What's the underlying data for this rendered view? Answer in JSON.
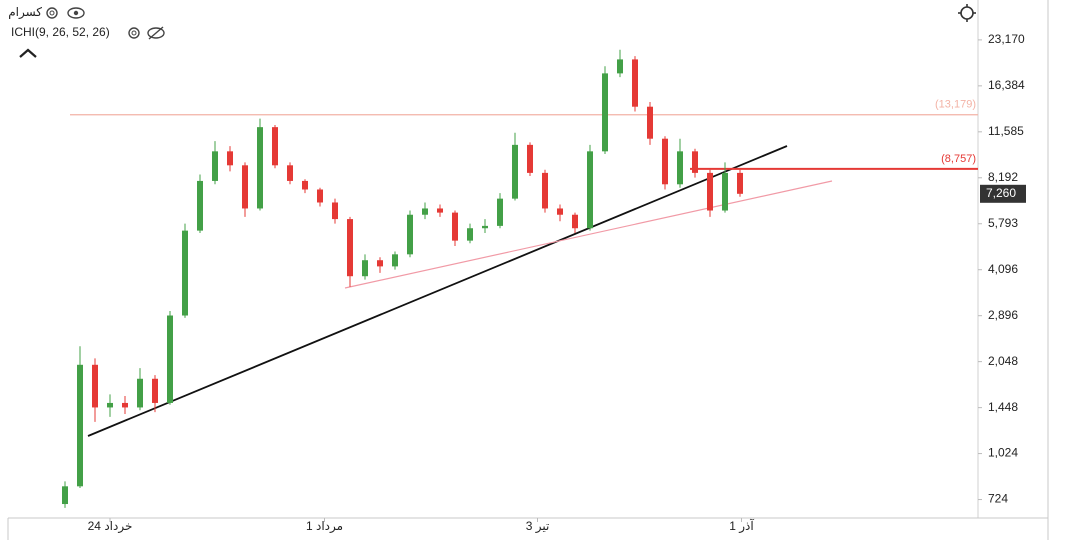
{
  "chart_data": {
    "type": "candlestick",
    "symbol": "کسرام",
    "indicator": "ICHI(9, 26, 52, 26)",
    "log_scale": true,
    "ylim": [
      630,
      31300
    ],
    "yticks": [
      {
        "value": 724,
        "label": "724"
      },
      {
        "value": 1024,
        "label": "1,024"
      },
      {
        "value": 1448,
        "label": "1,448"
      },
      {
        "value": 2048,
        "label": "2,048"
      },
      {
        "value": 2896,
        "label": "2,896"
      },
      {
        "value": 4096,
        "label": "4,096"
      },
      {
        "value": 5793,
        "label": "5,793"
      },
      {
        "value": 8192,
        "label": "8,192"
      },
      {
        "value": 11585,
        "label": "11,585"
      },
      {
        "value": 16384,
        "label": "16,384"
      },
      {
        "value": 23170,
        "label": "23,170"
      }
    ],
    "xticks": [
      {
        "value": 3,
        "label": "24 خرداد"
      },
      {
        "value": 17.3,
        "label": "1 مرداد"
      },
      {
        "value": 31.5,
        "label": "3 تیر"
      },
      {
        "value": 45.1,
        "label": "1 آذر"
      }
    ],
    "up_color": "#43a047",
    "down_color": "#e53935",
    "open": [
      700,
      800,
      2000,
      1450,
      1500,
      1450,
      1800,
      1500,
      2900,
      5500,
      8000,
      10000,
      9000,
      6500,
      12000,
      9000,
      8000,
      7500,
      6800,
      6000,
      3900,
      4400,
      4200,
      4600,
      6200,
      6500,
      6300,
      5100,
      5600,
      5700,
      7000,
      10500,
      8500,
      6500,
      6200,
      5600,
      10000,
      18000,
      20000,
      14000,
      11000,
      7800,
      10000,
      8500,
      6400,
      8500
    ],
    "high": [
      830,
      2300,
      2100,
      1600,
      1580,
      1950,
      1850,
      3000,
      5800,
      8400,
      10800,
      10400,
      9200,
      12800,
      12200,
      9200,
      8100,
      7600,
      7000,
      6100,
      4600,
      4500,
      4700,
      6400,
      6800,
      6700,
      6400,
      5800,
      6000,
      7300,
      11500,
      10700,
      8700,
      6700,
      6300,
      10500,
      19000,
      21500,
      20500,
      14500,
      11200,
      11000,
      10200,
      8700,
      9200,
      8700
    ],
    "low": [
      680,
      790,
      1300,
      1350,
      1380,
      1420,
      1400,
      1480,
      2850,
      5400,
      7800,
      8600,
      6100,
      6400,
      8800,
      7800,
      7300,
      6600,
      5800,
      3600,
      3800,
      4000,
      4100,
      4500,
      6000,
      6100,
      4900,
      5000,
      5400,
      5600,
      6900,
      8300,
      6300,
      5900,
      5400,
      5500,
      9800,
      17500,
      13500,
      10500,
      7500,
      7600,
      8200,
      6100,
      6300,
      7100
    ],
    "close": [
      800,
      2000,
      1450,
      1500,
      1450,
      1800,
      1500,
      2900,
      5500,
      8000,
      10000,
      9000,
      6500,
      12000,
      9000,
      8000,
      7500,
      6800,
      6000,
      3900,
      4400,
      4200,
      4600,
      6200,
      6500,
      6300,
      5100,
      5600,
      5700,
      7000,
      10500,
      8500,
      6500,
      6200,
      5600,
      10000,
      18000,
      20000,
      14000,
      11000,
      7800,
      10000,
      8500,
      6400,
      8500,
      7260
    ],
    "levels": [
      {
        "value": 13179,
        "label": "(13,179)",
        "color": "#f3b3a6"
      },
      {
        "value": 8757,
        "label": "(8,757)",
        "color": "#e53935"
      }
    ],
    "last": {
      "value": 7260,
      "label": "7,260"
    }
  }
}
